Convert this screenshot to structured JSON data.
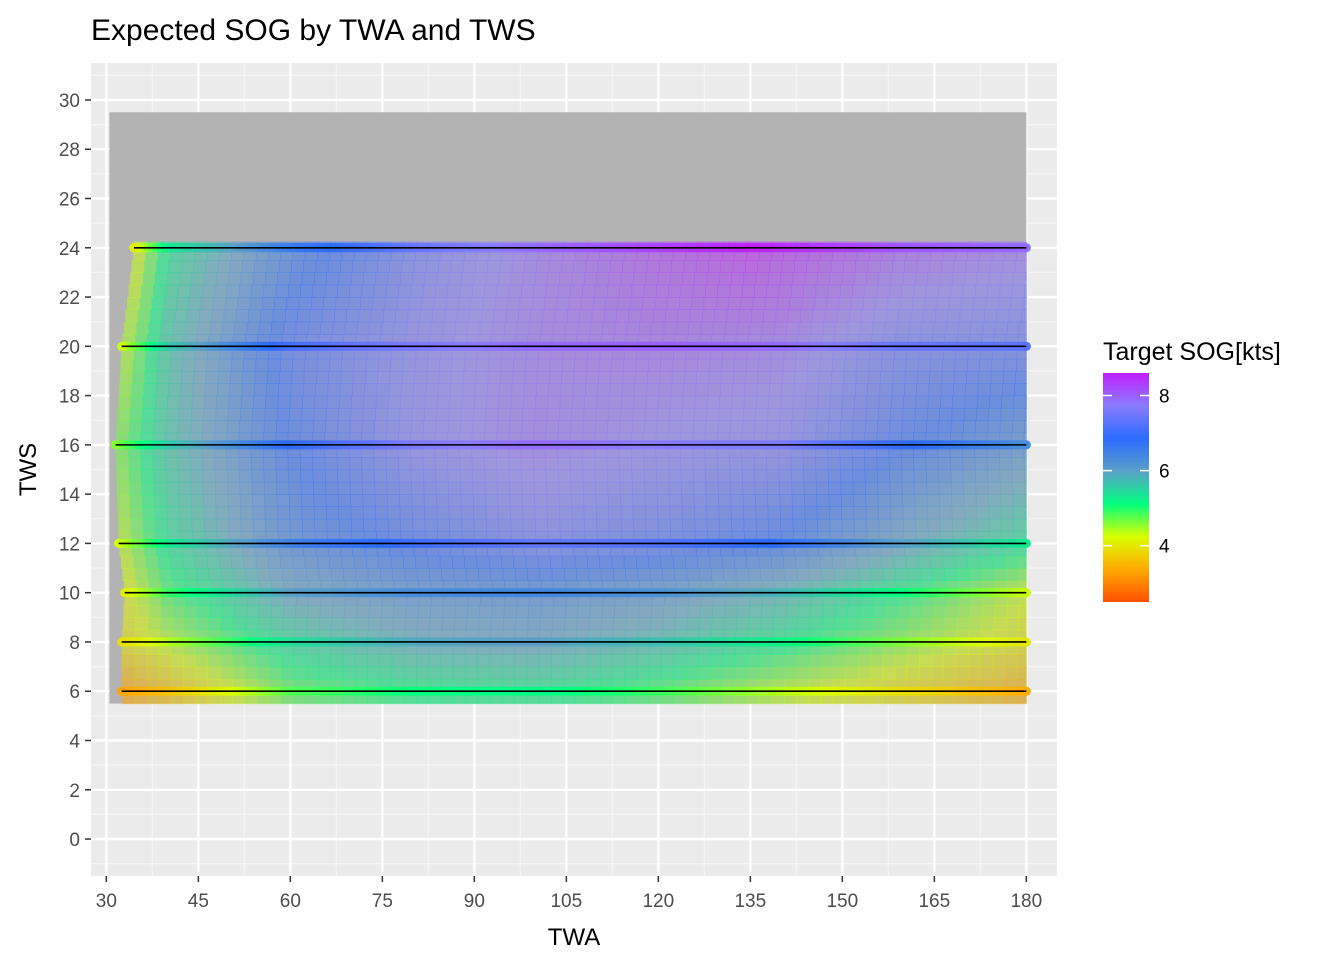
{
  "chart_data": {
    "type": "heatmap",
    "title": "Expected SOG by TWA and TWS",
    "xlabel": "TWA",
    "ylabel": "TWS",
    "xlim": [
      27.5,
      185
    ],
    "ylim": [
      -1.5,
      31.5
    ],
    "x_ticks": [
      30,
      45,
      60,
      75,
      90,
      105,
      120,
      135,
      150,
      165,
      180
    ],
    "y_ticks": [
      0,
      2,
      4,
      6,
      8,
      10,
      12,
      14,
      16,
      18,
      20,
      22,
      24,
      26,
      28,
      30
    ],
    "grid": true,
    "na_region": {
      "x": [
        30.5,
        180
      ],
      "y": [
        5.5,
        29.5
      ],
      "color": "#b3b3b3"
    },
    "polar_lines": [
      {
        "tws": 6,
        "twa_start": 32.5,
        "twa_end": 180,
        "anchors": [
          [
            32.5,
            3.3
          ],
          [
            40,
            3.6
          ],
          [
            60,
            4.8
          ],
          [
            80,
            5.1
          ],
          [
            100,
            5.2
          ],
          [
            120,
            4.9
          ],
          [
            140,
            4.4
          ],
          [
            160,
            3.9
          ],
          [
            180,
            3.4
          ]
        ]
      },
      {
        "tws": 8,
        "twa_start": 32.5,
        "twa_end": 180,
        "anchors": [
          [
            32.5,
            3.9
          ],
          [
            40,
            4.4
          ],
          [
            60,
            5.4
          ],
          [
            80,
            5.9
          ],
          [
            100,
            6.0
          ],
          [
            120,
            5.7
          ],
          [
            140,
            5.2
          ],
          [
            160,
            4.6
          ],
          [
            180,
            4.0
          ]
        ]
      },
      {
        "tws": 10,
        "twa_start": 33,
        "twa_end": 180,
        "anchors": [
          [
            33,
            4.1
          ],
          [
            40,
            4.9
          ],
          [
            60,
            6.0
          ],
          [
            80,
            6.3
          ],
          [
            100,
            6.4
          ],
          [
            120,
            6.2
          ],
          [
            140,
            5.8
          ],
          [
            160,
            5.1
          ],
          [
            180,
            4.3
          ]
        ]
      },
      {
        "tws": 12,
        "twa_start": 32,
        "twa_end": 180,
        "anchors": [
          [
            32,
            4.3
          ],
          [
            40,
            5.3
          ],
          [
            60,
            6.5
          ],
          [
            80,
            7.0
          ],
          [
            100,
            7.4
          ],
          [
            120,
            7.2
          ],
          [
            140,
            6.8
          ],
          [
            160,
            6.0
          ],
          [
            180,
            5.3
          ]
        ]
      },
      {
        "tws": 16,
        "twa_start": 31.5,
        "twa_end": 180,
        "anchors": [
          [
            31.5,
            4.6
          ],
          [
            40,
            5.6
          ],
          [
            60,
            6.9
          ],
          [
            80,
            7.6
          ],
          [
            100,
            7.9
          ],
          [
            120,
            7.7
          ],
          [
            140,
            7.6
          ],
          [
            160,
            6.9
          ],
          [
            180,
            6.3
          ]
        ]
      },
      {
        "tws": 20,
        "twa_start": 32.5,
        "twa_end": 180,
        "anchors": [
          [
            32.5,
            4.3
          ],
          [
            40,
            5.6
          ],
          [
            60,
            7.1
          ],
          [
            80,
            7.6
          ],
          [
            100,
            7.9
          ],
          [
            120,
            8.0
          ],
          [
            140,
            7.9
          ],
          [
            160,
            7.4
          ],
          [
            180,
            7.3
          ]
        ]
      },
      {
        "tws": 24,
        "twa_start": 34.5,
        "twa_end": 180,
        "anchors": [
          [
            34.5,
            4.1
          ],
          [
            40,
            5.3
          ],
          [
            60,
            6.6
          ],
          [
            80,
            7.4
          ],
          [
            100,
            7.9
          ],
          [
            120,
            8.3
          ],
          [
            135,
            8.6
          ],
          [
            160,
            8.1
          ],
          [
            180,
            7.9
          ]
        ]
      }
    ],
    "legend": {
      "title": "Target SOG[kts]",
      "placement": "right",
      "range": [
        2.5,
        8.6
      ],
      "labels": [
        4,
        6,
        8
      ],
      "colors": [
        "#ff5000",
        "#ffaa00",
        "#d9ff00",
        "#00ff7f",
        "#5aa0c8",
        "#2b6bff",
        "#8a7cff",
        "#c020ff"
      ]
    }
  }
}
